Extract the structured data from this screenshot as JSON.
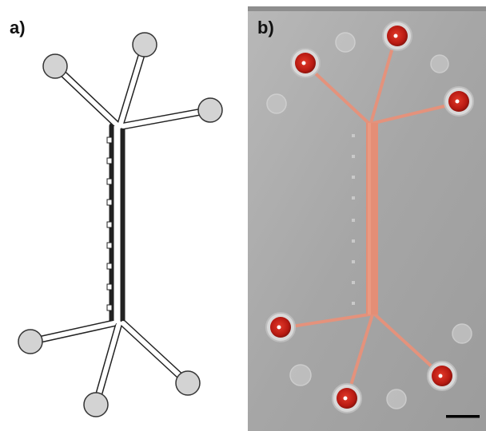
{
  "panels": {
    "a": {
      "label": "a)"
    },
    "b": {
      "label": "b)"
    }
  },
  "colors": {
    "port_fill": "#d3d3d3",
    "channel_outline": "#222222",
    "dye_red": "#c8201a",
    "dye_channel": "#e8907a",
    "photo_bg": "#a9a9a9"
  },
  "scale_bar": {
    "label": ""
  }
}
